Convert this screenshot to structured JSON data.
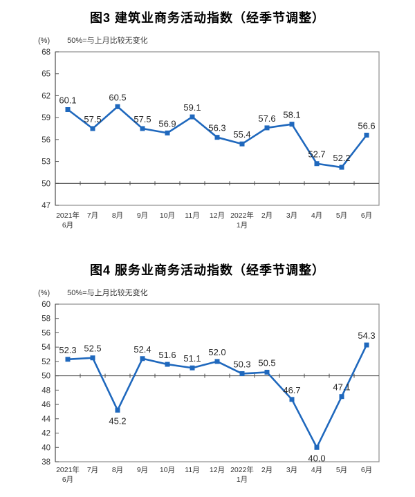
{
  "chart_data": [
    {
      "type": "line",
      "title": "图3 建筑业商务活动指数（经季节调整）",
      "unit_label": "(%)",
      "subtitle": "50%=与上月比较无变化",
      "categories": [
        [
          "2021年",
          "6月"
        ],
        "7月",
        "8月",
        "9月",
        "10月",
        "11月",
        "12月",
        [
          "2022年",
          "1月"
        ],
        "2月",
        "3月",
        "4月",
        "5月",
        "6月"
      ],
      "values": [
        60.1,
        57.5,
        60.5,
        57.5,
        56.9,
        59.1,
        56.3,
        55.4,
        57.6,
        58.1,
        52.7,
        52.2,
        56.6
      ],
      "xlabel": "",
      "ylabel": "(%)",
      "ylim": [
        47,
        68
      ],
      "ytick_step": 3,
      "reference_line": 50,
      "grid": false,
      "legend": "none",
      "line_color": "#1f68bd",
      "marker": "square",
      "label_below_indices": []
    },
    {
      "type": "line",
      "title": "图4 服务业商务活动指数（经季节调整）",
      "unit_label": "(%)",
      "subtitle": "50%=与上月比较无变化",
      "categories": [
        [
          "2021年",
          "6月"
        ],
        "7月",
        "8月",
        "9月",
        "10月",
        "11月",
        "12月",
        [
          "2022年",
          "1月"
        ],
        "2月",
        "3月",
        "4月",
        "5月",
        "6月"
      ],
      "values": [
        52.3,
        52.5,
        45.2,
        52.4,
        51.6,
        51.1,
        52.0,
        50.3,
        50.5,
        46.7,
        40.0,
        47.1,
        54.3
      ],
      "xlabel": "",
      "ylabel": "(%)",
      "ylim": [
        38,
        60
      ],
      "ytick_step": 2,
      "reference_line": 50,
      "grid": false,
      "legend": "none",
      "line_color": "#1f68bd",
      "marker": "square",
      "label_below_indices": [
        2,
        10
      ]
    }
  ],
  "colors": {
    "series_line": "#1f68bd",
    "plot_border": "#8e8e8e",
    "y_axis": "#6e6e6e",
    "reference_line": "#4d4d4d",
    "tick": "#555555",
    "axis_text": "#333333",
    "data_label_text": "#262626",
    "title_text": "#000000"
  }
}
